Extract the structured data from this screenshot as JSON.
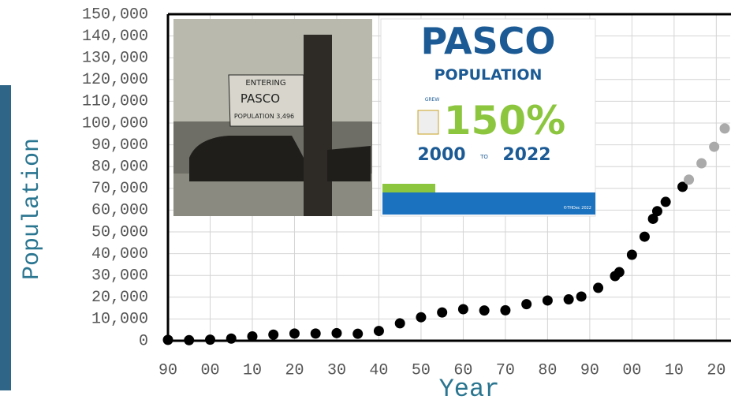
{
  "chart_data": {
    "type": "scatter",
    "x_label": "Year",
    "y_label": "Population",
    "xlim": [
      1890,
      2023.3
    ],
    "ylim": [
      0,
      150000
    ],
    "xticks": [
      {
        "value": 1890,
        "label": "90"
      },
      {
        "value": 1900,
        "label": "00"
      },
      {
        "value": 1910,
        "label": "10"
      },
      {
        "value": 1920,
        "label": "20"
      },
      {
        "value": 1930,
        "label": "30"
      },
      {
        "value": 1940,
        "label": "40"
      },
      {
        "value": 1950,
        "label": "50"
      },
      {
        "value": 1960,
        "label": "60"
      },
      {
        "value": 1970,
        "label": "70"
      },
      {
        "value": 1980,
        "label": "80"
      },
      {
        "value": 1990,
        "label": "90"
      },
      {
        "value": 2000,
        "label": "00"
      },
      {
        "value": 2010,
        "label": "10"
      },
      {
        "value": 2020,
        "label": "20"
      }
    ],
    "yticks": [
      0,
      {
        "value": 10000,
        "label": "10,000"
      },
      {
        "value": 20000,
        "label": "20,000"
      },
      {
        "value": 30000,
        "label": "30,000"
      },
      {
        "value": 40000,
        "label": "40,000"
      },
      {
        "value": 50000,
        "label": "50,000"
      },
      {
        "value": 60000,
        "label": "60,000"
      },
      {
        "value": 70000,
        "label": "70,000"
      },
      {
        "value": 80000,
        "label": "80,000"
      },
      {
        "value": 90000,
        "label": "90,000"
      },
      {
        "value": 100000,
        "label": "100,000"
      },
      {
        "value": 110000,
        "label": "110,000"
      },
      {
        "value": 120000,
        "label": "120,000"
      },
      {
        "value": 130000,
        "label": "130,000"
      },
      {
        "value": 140000,
        "label": "140,000"
      },
      {
        "value": 150000,
        "label": "150,000"
      }
    ],
    "grid": true,
    "series": [
      {
        "color": "#000000",
        "x": [
          1890,
          1895,
          1900,
          1905,
          1910,
          1915,
          1920,
          1925,
          1930,
          1935,
          1940,
          1945,
          1950,
          1955,
          1960,
          1965,
          1970,
          1975,
          1980,
          1985,
          1988,
          1992,
          1996,
          1997,
          2000,
          2003,
          2005,
          2006,
          2008,
          2012
        ],
        "values": [
          400,
          250,
          500,
          1000,
          2000,
          2800,
          3300,
          3300,
          3500,
          3200,
          4500,
          8000,
          10800,
          13000,
          14500,
          13900,
          14000,
          16800,
          18500,
          19000,
          20300,
          24300,
          29700,
          31500,
          39500,
          47800,
          56000,
          59500,
          63800,
          70700
        ]
      },
      {
        "color": "#aaaaaa",
        "x": [
          2013.5,
          2016.5,
          2019.5,
          2022
        ],
        "values": [
          74000,
          81500,
          89100,
          97500
        ]
      }
    ]
  },
  "inset": {
    "title": "PASCO",
    "subtitle": "POPULATION",
    "verb": "GREW",
    "figure": "150%",
    "from": "2000",
    "to_word": "TO",
    "to": "2022",
    "credit": "©THDec 2022"
  },
  "photo_sign": {
    "line1": "ENTERING",
    "line2": "PASCO",
    "line3": "POPULATION 3,496"
  }
}
